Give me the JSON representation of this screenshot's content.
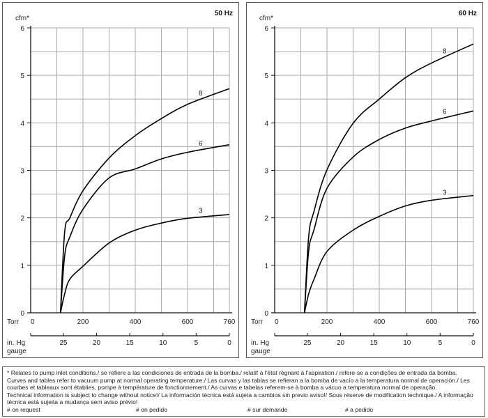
{
  "chart_data": [
    {
      "type": "line",
      "title": "50 Hz",
      "ylabel": "cfm*",
      "xlabel": "Torr",
      "x2label": "in. Hg gauge",
      "xlim": [
        0,
        760
      ],
      "ylim": [
        0,
        6
      ],
      "x_ticks": [
        "0",
        "200",
        "400",
        "600",
        "760"
      ],
      "y_ticks": [
        "0",
        "1",
        "2",
        "3",
        "4",
        "5",
        "6"
      ],
      "x2_ticks": [
        "25",
        "20",
        "15",
        "10",
        "5",
        "0"
      ],
      "grid": true,
      "series": [
        {
          "name": "8",
          "x": [
            114,
            130,
            150,
            200,
            300,
            400,
            500,
            600,
            760
          ],
          "y": [
            0,
            1.7,
            2.0,
            2.57,
            3.26,
            3.73,
            4.09,
            4.39,
            4.72
          ]
        },
        {
          "name": "6",
          "x": [
            114,
            130,
            150,
            200,
            300,
            400,
            500,
            600,
            760
          ],
          "y": [
            0,
            1.2,
            1.6,
            2.18,
            2.84,
            3.03,
            3.24,
            3.38,
            3.54
          ]
        },
        {
          "name": "3",
          "x": [
            114,
            130,
            150,
            200,
            300,
            400,
            500,
            600,
            760
          ],
          "y": [
            0,
            0.4,
            0.71,
            0.98,
            1.47,
            1.74,
            1.89,
            1.99,
            2.07
          ]
        }
      ]
    },
    {
      "type": "line",
      "title": "60 Hz",
      "ylabel": "cfm*",
      "xlabel": "Torr",
      "x2label": "in. Hg gauge",
      "xlim": [
        0,
        760
      ],
      "ylim": [
        0,
        6
      ],
      "x_ticks": [
        "0",
        "200",
        "400",
        "600",
        "760"
      ],
      "y_ticks": [
        "0",
        "1",
        "2",
        "3",
        "4",
        "5",
        "6"
      ],
      "x2_ticks": [
        "25",
        "20",
        "15",
        "10",
        "5",
        "0"
      ],
      "grid": true,
      "series": [
        {
          "name": "8",
          "x": [
            114,
            130,
            150,
            200,
            300,
            400,
            500,
            600,
            760
          ],
          "y": [
            0,
            1.6,
            2.13,
            3.01,
            3.99,
            4.5,
            4.95,
            5.26,
            5.66
          ]
        },
        {
          "name": "6",
          "x": [
            114,
            130,
            150,
            200,
            300,
            400,
            500,
            600,
            760
          ],
          "y": [
            0,
            1.3,
            1.74,
            2.62,
            3.28,
            3.65,
            3.89,
            4.04,
            4.25
          ]
        },
        {
          "name": "3",
          "x": [
            114,
            130,
            150,
            200,
            300,
            400,
            500,
            600,
            760
          ],
          "y": [
            0,
            0.4,
            0.7,
            1.29,
            1.74,
            2.03,
            2.25,
            2.37,
            2.47
          ]
        }
      ]
    }
  ],
  "footer": {
    "line1": "* Relates to pump inlet conditions./ se refiere a las condiciones de entrada de la bomba./ relatif à l'état règnant à l'aspiration./ refere-se a condições de entrada da bomba.",
    "line2": "Curves and tables refer to vacuum pump at normal operating temperature./ Las curvas y las tablas se refieran a la bomba de vacío a la temperatura normal de operación./ Les courbes et tableaux sont établies, pompe à température de fonctionnement./ As curvas e tabelas referem-se à bomba a vácuo a temperatura normal de operação.",
    "line3": "Technical information is subject to change without notice!/ La información técnica está sujeta a cambios sin previo aviso!/ Sous réserve de modification technique./ A informação técnica está sujeita a mudança sem aviso prévio!",
    "notes": [
      "# on request",
      "# on pedido",
      "# sur demande",
      "# a pedido"
    ]
  }
}
